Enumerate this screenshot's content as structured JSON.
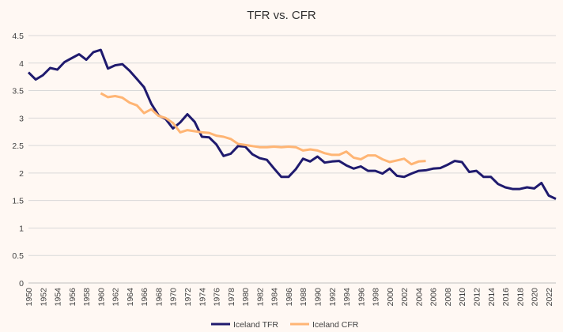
{
  "chart_data": {
    "type": "line",
    "title": "TFR vs. CFR",
    "xlabel": "",
    "ylabel": "",
    "ylim": [
      0,
      4.5
    ],
    "yticks": [
      "0",
      "0.5",
      "1",
      "1.5",
      "2",
      "2.5",
      "3",
      "3.5",
      "4",
      "4.5"
    ],
    "xlim": [
      1950,
      2023
    ],
    "xtick_step": 2,
    "grid": "horizontal",
    "legend_position": "bottom",
    "series": [
      {
        "name": "Iceland TFR",
        "color": "#1f1a6e",
        "start_year": 1950,
        "values": [
          3.83,
          3.7,
          3.78,
          3.91,
          3.88,
          4.02,
          4.09,
          4.16,
          4.06,
          4.2,
          4.24,
          3.9,
          3.96,
          3.98,
          3.86,
          3.71,
          3.56,
          3.26,
          3.05,
          2.98,
          2.81,
          2.92,
          3.07,
          2.93,
          2.66,
          2.65,
          2.52,
          2.31,
          2.35,
          2.49,
          2.48,
          2.34,
          2.27,
          2.24,
          2.08,
          1.93,
          1.93,
          2.07,
          2.26,
          2.21,
          2.3,
          2.19,
          2.21,
          2.22,
          2.14,
          2.08,
          2.12,
          2.04,
          2.04,
          1.99,
          2.08,
          1.95,
          1.93,
          1.99,
          2.04,
          2.05,
          2.08,
          2.09,
          2.15,
          2.22,
          2.2,
          2.02,
          2.04,
          1.93,
          1.93,
          1.8,
          1.74,
          1.71,
          1.71,
          1.74,
          1.72,
          1.82,
          1.59,
          1.53
        ]
      },
      {
        "name": "Iceland CFR",
        "color": "#ffb574",
        "start_year": 1960,
        "values": [
          3.45,
          3.38,
          3.4,
          3.37,
          3.28,
          3.23,
          3.09,
          3.16,
          3.04,
          3.0,
          2.91,
          2.74,
          2.78,
          2.76,
          2.74,
          2.73,
          2.68,
          2.66,
          2.62,
          2.53,
          2.51,
          2.49,
          2.47,
          2.47,
          2.48,
          2.47,
          2.48,
          2.47,
          2.41,
          2.43,
          2.41,
          2.36,
          2.33,
          2.33,
          2.39,
          2.28,
          2.25,
          2.32,
          2.32,
          2.25,
          2.2,
          2.23,
          2.26,
          2.16,
          2.21,
          2.22
        ]
      }
    ]
  }
}
